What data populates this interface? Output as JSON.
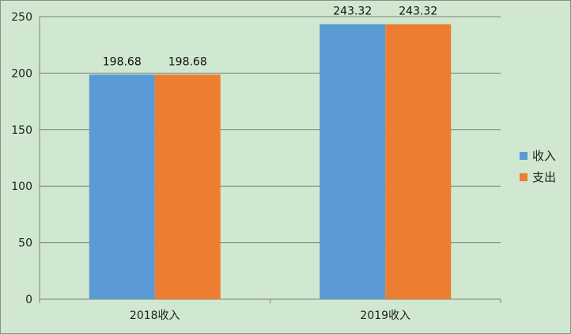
{
  "chart_data": {
    "type": "bar",
    "categories": [
      "2018收入",
      "2019收入"
    ],
    "series": [
      {
        "name": "收入",
        "color": "#5b9bd5",
        "values": [
          198.68,
          243.32
        ]
      },
      {
        "name": "支出",
        "color": "#ed7d31",
        "values": [
          198.68,
          243.32
        ]
      }
    ],
    "ylim": [
      0,
      250
    ],
    "yticks": [
      0,
      50,
      100,
      150,
      200,
      250
    ],
    "grid": true,
    "legend_position": "right",
    "background": "#cfe8cf",
    "gridline_color": "#7f7f7f"
  }
}
